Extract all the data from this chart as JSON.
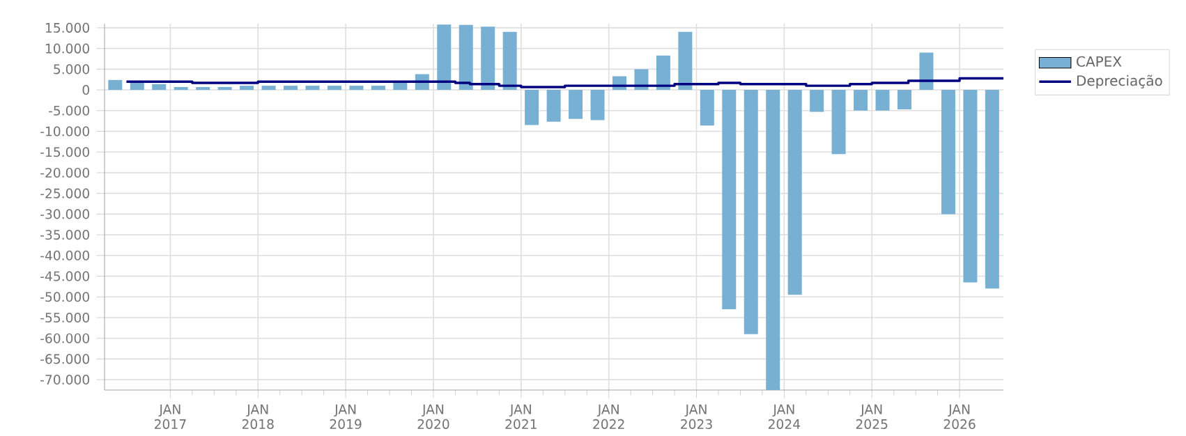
{
  "chart_data": {
    "type": "bar",
    "x": [
      "2016-05-15",
      "2016-08-15",
      "2016-11-15",
      "2017-02-15",
      "2017-05-15",
      "2017-08-15",
      "2017-11-15",
      "2018-02-15",
      "2018-05-15",
      "2018-08-15",
      "2018-11-15",
      "2019-02-15",
      "2019-05-15",
      "2019-08-15",
      "2019-11-15",
      "2020-02-15",
      "2020-05-15",
      "2020-08-15",
      "2020-11-15",
      "2021-02-15",
      "2021-05-15",
      "2021-08-15",
      "2021-11-15",
      "2022-02-15",
      "2022-05-15",
      "2022-08-15",
      "2022-11-15",
      "2023-02-15",
      "2023-05-15",
      "2023-08-15",
      "2023-11-15",
      "2024-02-15",
      "2024-05-15",
      "2024-08-15",
      "2024-11-15",
      "2025-02-15",
      "2025-05-15",
      "2025-08-15",
      "2025-11-15",
      "2026-02-15",
      "2026-05-15"
    ],
    "series": [
      {
        "name": "CAPEX",
        "color": "#77b0d3",
        "values": [
          2400,
          2000,
          1400,
          700,
          700,
          700,
          1000,
          1000,
          1000,
          1000,
          1000,
          1000,
          1000,
          2000,
          3800,
          15800,
          15700,
          15300,
          14000,
          -8500,
          -7700,
          -7000,
          -7300,
          3300,
          5000,
          8300,
          14000,
          -8600,
          -53000,
          -59000,
          -72500,
          -49500,
          -5300,
          -15500,
          -5000,
          -5000,
          -4700,
          9000,
          -30000,
          -46500,
          -48000
        ]
      },
      {
        "name": "Depreciação",
        "type": "step",
        "color": "#000080",
        "x": [
          "2016-07",
          "2017-04",
          "2018-01",
          "2020-04",
          "2020-06",
          "2020-10",
          "2021-01",
          "2021-07",
          "2022-10",
          "2023-04",
          "2023-07",
          "2024-04",
          "2024-10",
          "2025-01",
          "2025-06",
          "2026-01",
          "2026-07"
        ],
        "values": [
          2000,
          1700,
          2000,
          1700,
          1400,
          1000,
          700,
          1000,
          1400,
          1700,
          1400,
          1000,
          1400,
          1700,
          2200,
          2800,
          2800
        ]
      }
    ],
    "xlim": [
      "2016-04",
      "2026-07"
    ],
    "xticks": [
      {
        "value": "2017-01",
        "label": "JAN 2017"
      },
      {
        "value": "2018-01",
        "label": "JAN 2018"
      },
      {
        "value": "2019-01",
        "label": "JAN 2019"
      },
      {
        "value": "2020-01",
        "label": "JAN 2020"
      },
      {
        "value": "2021-01",
        "label": "JAN 2021"
      },
      {
        "value": "2022-01",
        "label": "JAN 2022"
      },
      {
        "value": "2023-01",
        "label": "JAN 2023"
      },
      {
        "value": "2024-01",
        "label": "JAN 2024"
      },
      {
        "value": "2025-01",
        "label": "JAN 2025"
      },
      {
        "value": "2026-01",
        "label": "JAN 2026"
      }
    ],
    "ylim": [
      -72500,
      16000
    ],
    "yticks": [
      {
        "value": -70000,
        "label": "-70.000"
      },
      {
        "value": -65000,
        "label": "-65.000"
      },
      {
        "value": -60000,
        "label": "-60.000"
      },
      {
        "value": -55000,
        "label": "-55.000"
      },
      {
        "value": -50000,
        "label": "-50.000"
      },
      {
        "value": -45000,
        "label": "-45.000"
      },
      {
        "value": -40000,
        "label": "-40.000"
      },
      {
        "value": -35000,
        "label": "-35.000"
      },
      {
        "value": -30000,
        "label": "-30.000"
      },
      {
        "value": -25000,
        "label": "-25.000"
      },
      {
        "value": -20000,
        "label": "-20.000"
      },
      {
        "value": -15000,
        "label": "-15.000"
      },
      {
        "value": -10000,
        "label": "-10.000"
      },
      {
        "value": -5000,
        "label": "-5.000"
      },
      {
        "value": 0,
        "label": "0"
      },
      {
        "value": 5000,
        "label": "5.000"
      },
      {
        "value": 10000,
        "label": "10.000"
      },
      {
        "value": 15000,
        "label": "15.000"
      }
    ],
    "grid": true,
    "legend": "top right"
  }
}
